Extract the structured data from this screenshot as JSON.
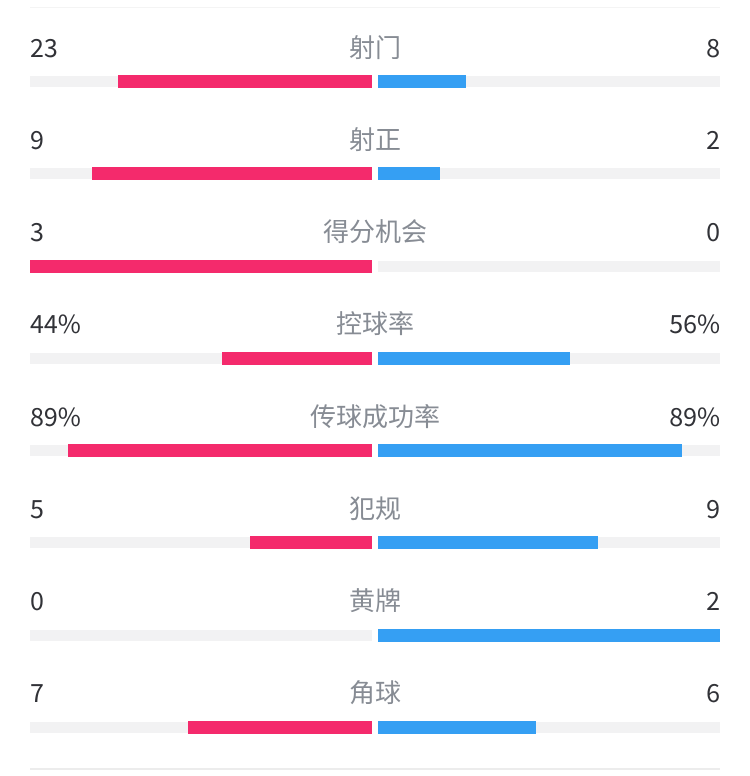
{
  "chart_data": {
    "type": "bar",
    "orientation": "horizontal-diverging",
    "description": "足球比赛技术统计对比",
    "categories": [
      "射门",
      "射正",
      "得分机会",
      "控球率",
      "传球成功率",
      "犯规",
      "黄牌",
      "角球"
    ],
    "series": [
      {
        "name": "home",
        "color": "#F42A6C",
        "values": [
          23,
          9,
          3,
          44,
          89,
          5,
          0,
          7
        ]
      },
      {
        "name": "away",
        "color": "#359FF3",
        "values": [
          8,
          2,
          0,
          56,
          89,
          9,
          2,
          6
        ]
      }
    ],
    "rows": [
      {
        "label": "射门",
        "home_display": "23",
        "away_display": "8",
        "home_value": 23,
        "away_value": 8,
        "percent": false
      },
      {
        "label": "射正",
        "home_display": "9",
        "away_display": "2",
        "home_value": 9,
        "away_value": 2,
        "percent": false
      },
      {
        "label": "得分机会",
        "home_display": "3",
        "away_display": "0",
        "home_value": 3,
        "away_value": 0,
        "percent": false
      },
      {
        "label": "控球率",
        "home_display": "44%",
        "away_display": "56%",
        "home_value": 44,
        "away_value": 56,
        "percent": true
      },
      {
        "label": "传球成功率",
        "home_display": "89%",
        "away_display": "89%",
        "home_value": 89,
        "away_value": 89,
        "percent": true
      },
      {
        "label": "犯规",
        "home_display": "5",
        "away_display": "9",
        "home_value": 5,
        "away_value": 9,
        "percent": false
      },
      {
        "label": "黄牌",
        "home_display": "0",
        "away_display": "2",
        "home_value": 0,
        "away_value": 2,
        "percent": false
      },
      {
        "label": "角球",
        "home_display": "7",
        "away_display": "6",
        "home_value": 7,
        "away_value": 6,
        "percent": false
      }
    ],
    "legend_position": "none",
    "grid": false
  },
  "colors": {
    "background": "#FFFFFF",
    "home_bar": "#F42A6C",
    "away_bar": "#359FF3",
    "bar_track": "#F2F2F3",
    "value_text": "#313237",
    "label_text": "#878C94",
    "divider_top": "#F4F4F4",
    "divider_bottom": "#ECECEC"
  }
}
